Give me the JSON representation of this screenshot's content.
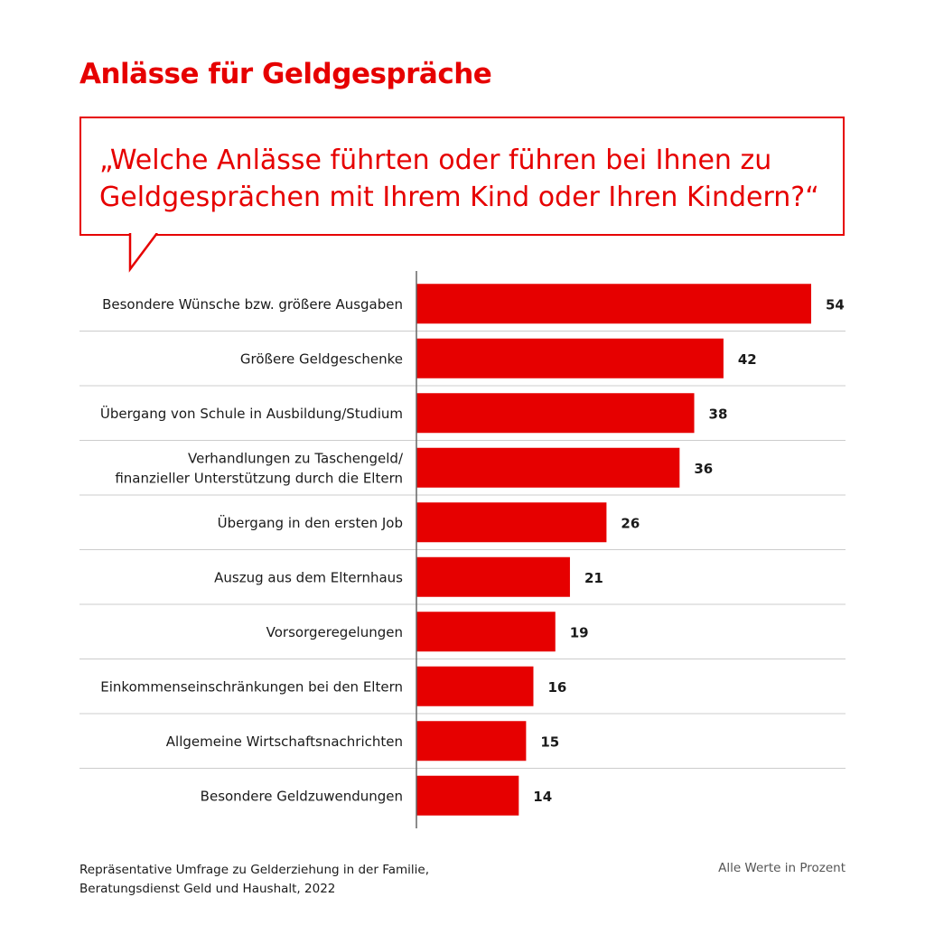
{
  "title": "Anlässe für Geldgespräche",
  "question": "„Welche Anlässe führten oder führen bei Ihnen zu Geldgesprächen mit Ihrem Kind oder Ihren Kindern?“",
  "footer": {
    "source_line1": "Repräsentative Umfrage zu Gelderziehung in der Familie,",
    "source_line2": "Beratungsdienst Geld und Haushalt, 2022",
    "unit_note": "Alle Werte in Prozent"
  },
  "colors": {
    "accent": "#e60000",
    "text": "#1a1a1a",
    "gridline": "#cccccc",
    "axis": "#666666"
  },
  "chart_data": {
    "type": "bar",
    "orientation": "horizontal",
    "title": "Anlässe für Geldgespräche",
    "unit": "Prozent",
    "xlim": [
      0,
      54
    ],
    "grid": false,
    "categories": [
      [
        "Besondere Wünsche bzw. größere Ausgaben"
      ],
      [
        "Größere Geldgeschenke"
      ],
      [
        "Übergang von Schule in Ausbildung/Studium"
      ],
      [
        "Verhandlungen zu Taschengeld/",
        "finanzieller Unterstützung durch die Eltern"
      ],
      [
        "Übergang in den ersten Job"
      ],
      [
        "Auszug aus dem Elternhaus"
      ],
      [
        "Vorsorgeregelungen"
      ],
      [
        "Einkommenseinschränkungen bei den Eltern"
      ],
      [
        "Allgemeine Wirtschaftsnachrichten"
      ],
      [
        "Besondere Geldzuwendungen"
      ]
    ],
    "values": [
      54,
      42,
      38,
      36,
      26,
      21,
      19,
      16,
      15,
      14
    ]
  }
}
